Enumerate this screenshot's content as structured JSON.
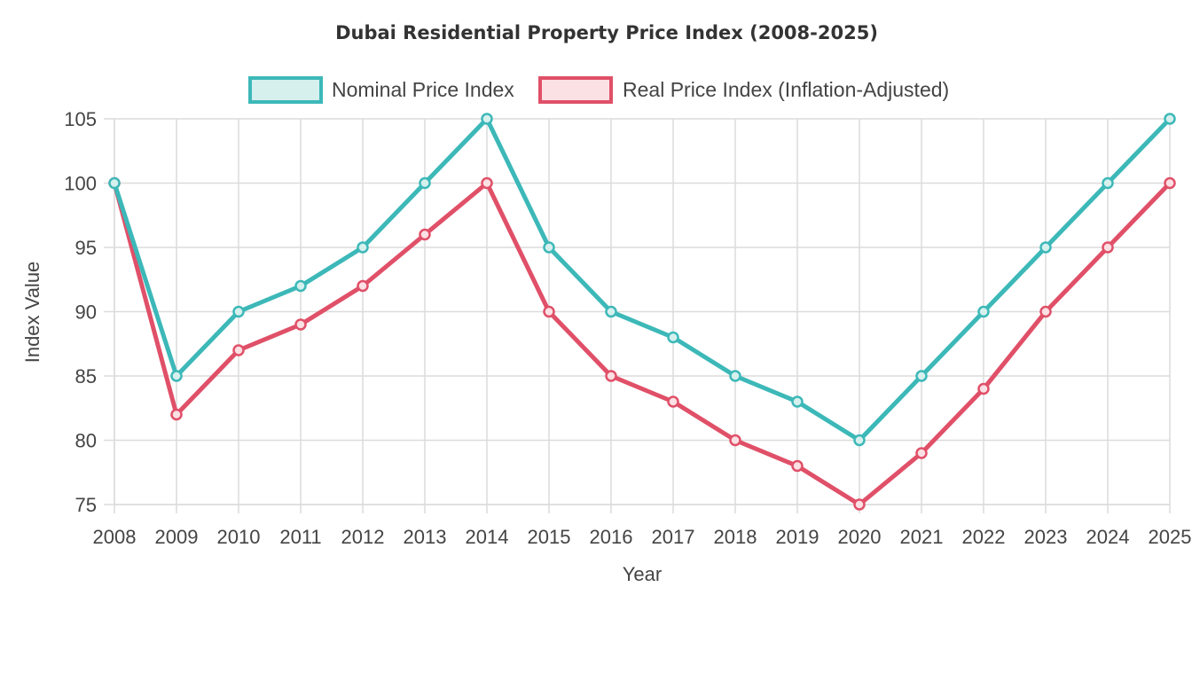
{
  "chart_data": {
    "type": "line",
    "title": "Dubai Residential Property Price Index (2008-2025)",
    "xlabel": "Year",
    "ylabel": "Index Value",
    "categories": [
      "2008",
      "2009",
      "2010",
      "2011",
      "2012",
      "2013",
      "2014",
      "2015",
      "2016",
      "2017",
      "2018",
      "2019",
      "2020",
      "2021",
      "2022",
      "2023",
      "2024",
      "2025"
    ],
    "ylim": [
      75,
      105
    ],
    "yticks": [
      75,
      80,
      85,
      90,
      95,
      100,
      105
    ],
    "grid": true,
    "legend_position": "top-center",
    "series": [
      {
        "name": "Nominal Price Index",
        "color": "#3db8b8",
        "fill": "#d6f0ee",
        "values": [
          100,
          85,
          90,
          92,
          95,
          100,
          105,
          95,
          90,
          88,
          85,
          83,
          80,
          85,
          90,
          95,
          100,
          105
        ]
      },
      {
        "name": "Real Price Index (Inflation-Adjusted)",
        "color": "#e05068",
        "fill": "#fbe0e4",
        "values": [
          100,
          82,
          87,
          89,
          92,
          96,
          100,
          90,
          85,
          83,
          80,
          78,
          75,
          79,
          84,
          90,
          95,
          100
        ]
      }
    ]
  }
}
